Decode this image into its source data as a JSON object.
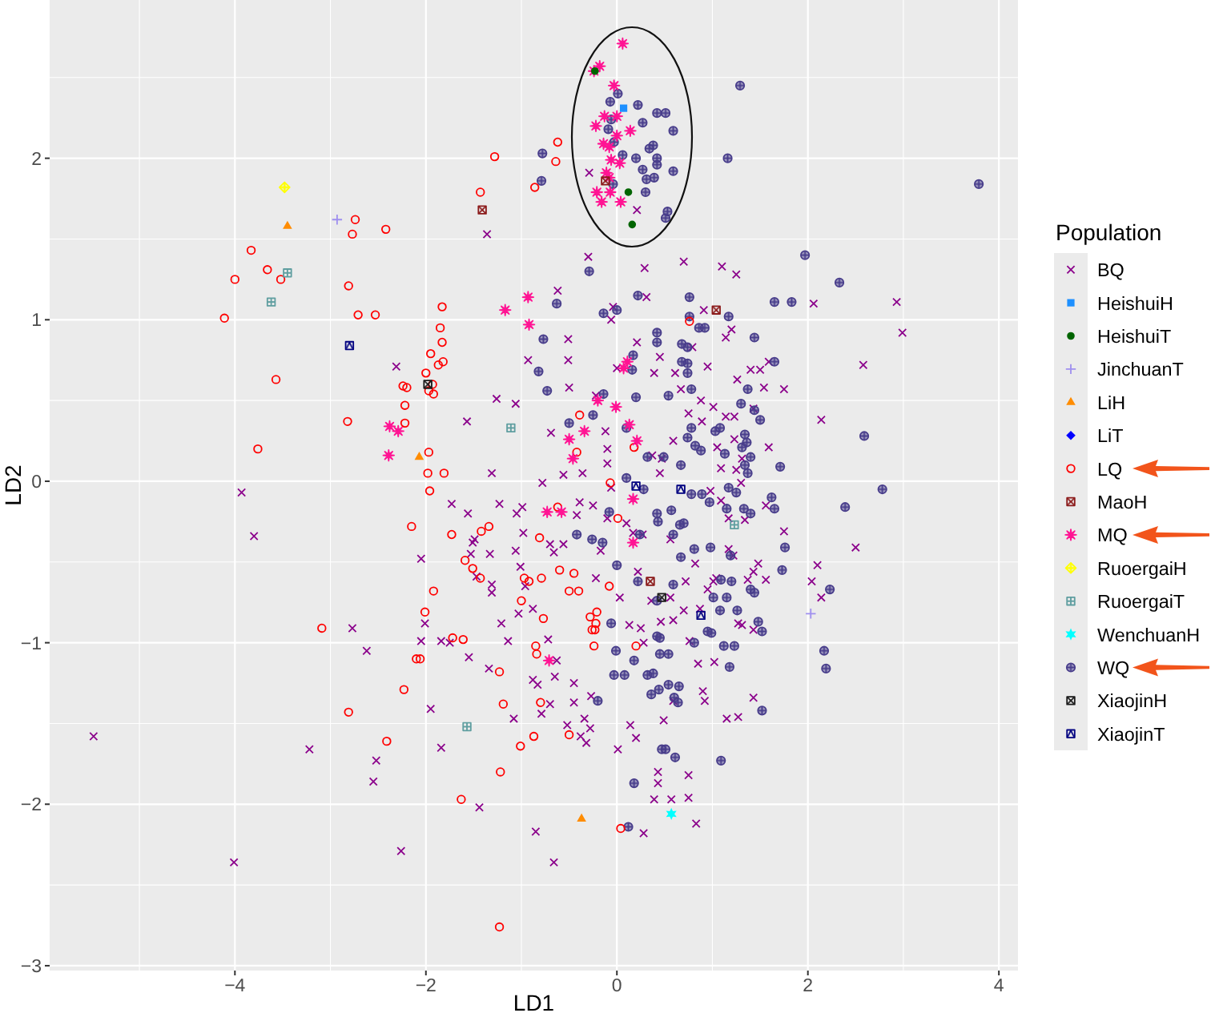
{
  "chart_data": {
    "type": "scatter",
    "xlabel": "LD1",
    "ylabel": "LD2",
    "legend_title": "Population",
    "legend": "right",
    "grid": true,
    "xlim": [
      -5.94,
      4.2
    ],
    "ylim": [
      -3.03,
      2.98
    ],
    "xticks": [
      {
        "value": -5,
        "label": null
      },
      {
        "value": -4,
        "label": "−4"
      },
      {
        "value": -3,
        "label": null
      },
      {
        "value": -2,
        "label": "−2"
      },
      {
        "value": -1,
        "label": null
      },
      0,
      {
        "value": 1,
        "label": null
      },
      2,
      {
        "value": 3,
        "label": null
      },
      4
    ],
    "yticks": [
      {
        "value": -3,
        "label": "−3"
      },
      {
        "value": -2.5,
        "label": null
      },
      {
        "value": -2,
        "label": "−2"
      },
      {
        "value": -1.5,
        "label": null
      },
      {
        "value": -1,
        "label": "−1"
      },
      {
        "value": -0.5,
        "label": null
      },
      0,
      {
        "value": 0.5,
        "label": null
      },
      1,
      {
        "value": 1.5,
        "label": null
      },
      2,
      {
        "value": 2.5,
        "label": null
      }
    ],
    "series": [
      {
        "name": "BQ",
        "color": "#8b008b",
        "marker": "cross",
        "x": [
          -1.36,
          -0.29,
          0.21,
          -0.3,
          0.29,
          0.7,
          1.1,
          1.25,
          -0.62,
          0.31,
          -0.04,
          0.91,
          2.06,
          2.93,
          2.99,
          2.58,
          2.14,
          2.5,
          2.1,
          2.04,
          2.14,
          -0.06,
          -0.51,
          -0.51,
          -0.5,
          0.21,
          0.45,
          0.79,
          1.14,
          1.2,
          0.0,
          0.39,
          0.61,
          0.95,
          1.26,
          1.4,
          1.54,
          1.75,
          1.5,
          1.59,
          0.67,
          -0.22,
          0.88,
          1.01,
          0.75,
          1.23,
          1.14,
          1.43,
          0.59,
          0.89,
          -0.12,
          -0.69,
          -0.1,
          -0.1,
          0.37,
          0.47,
          1.05,
          1.23,
          1.59,
          1.09,
          1.25,
          1.31,
          0.45,
          -0.56,
          -0.36,
          -0.78,
          -0.06,
          0.98,
          1.3,
          1.09,
          1.56,
          -0.39,
          -0.25,
          -0.42,
          -0.1,
          0.1,
          0.17,
          0.27,
          1.17,
          1.34,
          1.75,
          -0.7,
          -0.56,
          -0.66,
          -0.17,
          0.56,
          1.17,
          1.22,
          0.82,
          1.48,
          1.43,
          1.37,
          1.56,
          1.04,
          -0.22,
          0.22,
          0.03,
          0.72,
          0.95,
          0.56,
          0.36,
          0.7,
          0.87,
          1.01,
          1.27,
          1.43,
          0.13,
          0.25,
          0.46,
          0.59,
          -2.31,
          -1.26,
          -1.06,
          -1.57,
          -1.31,
          -3.93,
          -3.8,
          -1.73,
          -1.56,
          -1.23,
          -0.99,
          -1.05,
          -1.49,
          -1.51,
          -0.98,
          -2.05,
          -1.53,
          -1.33,
          -1.06,
          -1.01,
          -1.47,
          -1.31,
          -1.31,
          -0.96,
          -1.03,
          -0.88,
          -1.21,
          -2.01,
          -2.77,
          -0.93,
          -2.62,
          -2.05,
          -1.84,
          -1.75,
          -1.55,
          -1.34,
          -1.14,
          -0.72,
          -0.88,
          -0.83,
          -0.65,
          -0.63,
          -0.45,
          -0.45,
          -0.7,
          -0.27,
          -0.79,
          -1.08,
          -1.95,
          -0.52,
          -0.34,
          -0.28,
          -0.38,
          -0.32,
          0.01,
          0.14,
          0.2,
          0.49,
          0.59,
          0.9,
          0.92,
          0.85,
          1.43,
          1.15,
          1.27,
          0.75,
          0.75,
          0.43,
          0.43,
          0.39,
          0.57,
          0.83,
          0.28,
          -0.85,
          -0.66,
          -1.44,
          -2.26,
          -1.84,
          -2.52,
          -2.55,
          -3.22,
          -5.48,
          -4.01,
          1.31,
          0.76,
          0.28,
          1.02
        ],
        "values": [
          1.53,
          1.91,
          1.68,
          1.39,
          1.32,
          1.36,
          1.33,
          1.28,
          1.18,
          1.14,
          1.08,
          1.06,
          1.1,
          1.11,
          0.92,
          0.72,
          0.38,
          -0.41,
          -0.52,
          -0.62,
          -0.72,
          1.0,
          0.88,
          0.75,
          0.58,
          0.86,
          0.77,
          0.83,
          0.89,
          0.94,
          0.7,
          0.67,
          0.67,
          0.71,
          0.63,
          0.69,
          0.58,
          0.57,
          0.69,
          0.74,
          0.57,
          0.53,
          0.5,
          0.46,
          0.42,
          0.4,
          0.4,
          0.45,
          0.25,
          0.37,
          0.31,
          0.3,
          0.2,
          0.11,
          0.16,
          0.14,
          0.21,
          0.26,
          0.21,
          0.08,
          0.07,
          0.14,
          0.05,
          0.04,
          0.05,
          -0.01,
          -0.04,
          -0.06,
          -0.01,
          -0.12,
          -0.15,
          -0.13,
          -0.15,
          -0.21,
          -0.23,
          -0.26,
          -0.32,
          -0.33,
          -0.23,
          -0.24,
          -0.31,
          -0.39,
          -0.39,
          -0.44,
          -0.43,
          -0.36,
          -0.42,
          -0.46,
          -0.51,
          -0.51,
          -0.56,
          -0.61,
          -0.61,
          -0.6,
          -0.6,
          -0.56,
          -0.72,
          -0.62,
          -0.67,
          -0.72,
          -0.74,
          -0.8,
          -0.79,
          -0.62,
          -0.88,
          -0.92,
          -0.89,
          -0.91,
          -0.87,
          -0.86,
          0.71,
          0.51,
          0.48,
          0.37,
          0.05,
          -0.07,
          -0.34,
          -0.14,
          -0.2,
          -0.14,
          -0.16,
          -0.2,
          -0.36,
          -0.38,
          -0.32,
          -0.48,
          -0.45,
          -0.45,
          -0.43,
          -0.53,
          -0.59,
          -0.64,
          -0.69,
          -0.65,
          -0.82,
          -0.79,
          -0.88,
          -0.88,
          -0.91,
          0.75,
          -1.05,
          -0.99,
          -0.99,
          -1.0,
          -1.09,
          -1.16,
          -0.99,
          -0.98,
          -1.23,
          -1.26,
          -1.21,
          -1.11,
          -1.25,
          -1.37,
          -1.38,
          -1.33,
          -1.44,
          -1.47,
          -1.41,
          -1.51,
          -1.47,
          -1.53,
          -1.58,
          -1.62,
          -1.66,
          -1.51,
          -1.59,
          -1.48,
          -1.36,
          -1.3,
          -1.36,
          -1.13,
          -1.34,
          -1.47,
          -1.46,
          -1.82,
          -1.96,
          -1.8,
          -1.87,
          -1.97,
          -1.97,
          -2.12,
          -2.18,
          -2.17,
          -2.36,
          -2.02,
          -2.29,
          -1.65,
          -1.73,
          -1.86,
          -1.66,
          -1.58,
          -2.36,
          -0.89,
          -0.99,
          -1.0,
          -1.12
        ]
      },
      {
        "name": "HeishuiH",
        "color": "#1e90ff",
        "marker": "square",
        "x": [
          0.07
        ],
        "values": [
          2.31
        ]
      },
      {
        "name": "HeishuiT",
        "color": "#006400",
        "marker": "circle",
        "x": [
          -0.23,
          0.12,
          0.16
        ],
        "values": [
          2.54,
          1.79,
          1.59
        ]
      },
      {
        "name": "JinchuanT",
        "color": "#9f8fef",
        "marker": "cross",
        "x": [
          -2.93,
          2.03
        ],
        "values": [
          1.62,
          -0.82
        ]
      },
      {
        "name": "LiH",
        "color": "#ff8c00",
        "marker": "triangle",
        "x": [
          -3.45,
          -2.07,
          -0.37
        ],
        "values": [
          1.58,
          0.15,
          -2.09
        ]
      },
      {
        "name": "LiT",
        "color": "#0000ff",
        "marker": "diamond",
        "x": [
          null
        ],
        "values": [
          null
        ]
      },
      {
        "name": "LQ",
        "color": "#ff0000",
        "marker": "circle",
        "x": [
          -1.28,
          -1.43,
          -0.86,
          -2.74,
          -2.77,
          -2.42,
          -3.83,
          -3.66,
          -3.52,
          -4.0,
          -2.81,
          -4.11,
          -2.71,
          -2.53,
          -1.83,
          -0.62,
          -0.64,
          -1.85,
          -1.83,
          -1.95,
          -1.82,
          -1.87,
          -2.0,
          -3.57,
          -2.24,
          -2.2,
          -1.93,
          -1.97,
          -1.92,
          -2.22,
          -2.82,
          -2.22,
          -3.76,
          -1.97,
          -1.98,
          -1.81,
          -1.96,
          -2.15,
          -1.73,
          -1.42,
          -1.34,
          -0.81,
          -1.59,
          -1.51,
          -1.43,
          -0.97,
          -0.92,
          -0.79,
          -1.0,
          -1.92,
          -2.01,
          -3.09,
          -1.72,
          -1.61,
          0.76,
          -0.39,
          0.18,
          -0.42,
          -0.07,
          0.01,
          -0.62,
          -0.6,
          -0.45,
          -0.5,
          -0.4,
          -0.08,
          -0.21,
          -0.28,
          -0.22,
          -0.26,
          -0.77,
          -0.85,
          -0.84,
          -2.1,
          -2.06,
          -1.23,
          -0.23,
          -0.24,
          0.2,
          -2.23,
          -1.19,
          -0.8,
          -2.81,
          -2.41,
          -0.87,
          -1.01,
          -0.5,
          -1.22,
          -1.63,
          0.04,
          -1.23
        ],
        "values": [
          2.01,
          1.79,
          1.82,
          1.62,
          1.53,
          1.56,
          1.43,
          1.31,
          1.25,
          1.25,
          1.21,
          1.01,
          1.03,
          1.03,
          1.08,
          2.1,
          1.98,
          0.95,
          0.86,
          0.79,
          0.74,
          0.72,
          0.67,
          0.63,
          0.59,
          0.58,
          0.6,
          0.56,
          0.54,
          0.47,
          0.37,
          0.36,
          0.2,
          0.18,
          0.05,
          0.05,
          -0.06,
          -0.28,
          -0.33,
          -0.31,
          -0.28,
          -0.35,
          -0.49,
          -0.54,
          -0.6,
          -0.6,
          -0.62,
          -0.6,
          -0.74,
          -0.68,
          -0.81,
          -0.91,
          -0.97,
          -0.98,
          0.99,
          0.41,
          0.21,
          0.18,
          -0.01,
          -0.23,
          -0.16,
          -0.55,
          -0.57,
          -0.68,
          -0.68,
          -0.65,
          -0.81,
          -0.84,
          -0.88,
          -0.92,
          -0.85,
          -1.02,
          -1.07,
          -1.1,
          -1.1,
          -1.18,
          -0.92,
          -1.02,
          -1.02,
          -1.29,
          -1.38,
          -1.37,
          -1.43,
          -1.61,
          -1.58,
          -1.64,
          -1.57,
          -1.8,
          -1.97,
          -2.15,
          -2.76
        ]
      },
      {
        "name": "MaoH",
        "color": "#8b1a1a",
        "marker": "square",
        "x": [
          -1.41,
          1.04,
          0.35,
          -0.12
        ],
        "values": [
          1.68,
          1.06,
          -0.62,
          1.86
        ]
      },
      {
        "name": "MQ",
        "color": "#ff1493",
        "marker": "star",
        "x": [
          -1.17,
          -0.93,
          0.06,
          -0.18,
          -0.24,
          -0.03,
          0.0,
          -0.13,
          -0.22,
          0.14,
          0.0,
          -0.14,
          -0.08,
          -0.06,
          0.03,
          -0.11,
          -0.08,
          -0.21,
          -0.07,
          -0.16,
          0.04,
          -0.92,
          -2.38,
          -2.29,
          -2.39,
          0.11,
          0.07,
          -0.2,
          -0.01,
          0.13,
          -0.34,
          -0.5,
          0.21,
          -0.46,
          -0.73,
          -0.58,
          0.17,
          0.17,
          -0.71
        ],
        "values": [
          1.06,
          1.14,
          2.71,
          2.57,
          2.54,
          2.45,
          2.26,
          2.26,
          2.2,
          2.17,
          2.14,
          2.09,
          2.07,
          1.99,
          1.97,
          1.91,
          1.88,
          1.79,
          1.79,
          1.73,
          1.73,
          0.97,
          0.34,
          0.31,
          0.16,
          0.74,
          0.7,
          0.5,
          0.46,
          0.35,
          0.31,
          0.26,
          0.25,
          0.14,
          -0.19,
          -0.19,
          -0.11,
          -0.38,
          -1.11
        ]
      },
      {
        "name": "RuoergaiH",
        "color": "#ffff00",
        "marker": "diamond",
        "x": [
          -3.48
        ],
        "values": [
          1.82
        ]
      },
      {
        "name": "RuoergaiT",
        "color": "#5f9ea0",
        "marker": "square",
        "x": [
          -3.45,
          -3.62,
          -1.11,
          1.23,
          -1.57
        ],
        "values": [
          1.29,
          1.11,
          0.33,
          -0.27,
          -1.52
        ]
      },
      {
        "name": "WenchuanH",
        "color": "#00ffff",
        "marker": "star",
        "x": [
          0.57
        ],
        "values": [
          -2.06
        ]
      },
      {
        "name": "WQ",
        "color": "#483d8b",
        "marker": "circle",
        "x": [
          -0.78,
          -0.79,
          0.01,
          -0.07,
          0.22,
          0.42,
          0.51,
          0.27,
          -0.06,
          -0.09,
          0.59,
          -0.03,
          0.38,
          0.34,
          0.06,
          0.2,
          0.42,
          0.42,
          0.27,
          0.59,
          0.31,
          0.39,
          -0.04,
          0.3,
          0.53,
          0.51,
          1.29,
          1.16,
          3.79,
          1.97,
          2.33,
          -0.29,
          -0.63,
          -0.14,
          0.0,
          0.22,
          0.76,
          0.76,
          1.17,
          1.65,
          1.83,
          -0.77,
          0.42,
          0.42,
          0.86,
          0.92,
          1.44,
          0.68,
          0.74,
          0.17,
          0.16,
          0.68,
          0.74,
          0.74,
          1.65,
          -0.82,
          -0.73,
          -0.14,
          0.2,
          0.54,
          0.78,
          1.37,
          1.3,
          1.44,
          1.5,
          0.78,
          0.74,
          1.08,
          1.03,
          1.34,
          1.36,
          0.82,
          0.88,
          1.13,
          1.31,
          1.4,
          1.34,
          1.37,
          1.71,
          2.59,
          2.78,
          2.39,
          1.76,
          1.73,
          2.23,
          -0.5,
          -0.25,
          0.1,
          0.49,
          0.32,
          0.67,
          0.1,
          0.28,
          0.78,
          0.89,
          0.97,
          1.17,
          1.25,
          1.15,
          1.33,
          1.4,
          1.62,
          1.65,
          0.42,
          0.57,
          0.66,
          0.7,
          0.43,
          -0.08,
          -0.42,
          -0.26,
          -0.15,
          0.24,
          0.59,
          0.67,
          0.81,
          0.98,
          1.19,
          0.0,
          0.22,
          0.42,
          0.59,
          1.09,
          1.2,
          1.15,
          1.01,
          1.4,
          1.44,
          1.26,
          1.08,
          1.48,
          0.95,
          0.42,
          -0.06,
          -0.2,
          -0.03,
          0.08,
          -0.01,
          0.18,
          0.32,
          0.38,
          0.36,
          0.44,
          0.54,
          0.65,
          0.45,
          0.54,
          0.45,
          0.6,
          0.64,
          0.99,
          1.12,
          1.23,
          1.18,
          0.81,
          1.52,
          1.52,
          2.17,
          2.19,
          0.47,
          0.51,
          0.61,
          1.09,
          0.18,
          0.12
        ],
        "values": [
          2.03,
          1.86,
          2.4,
          2.35,
          2.33,
          2.28,
          2.28,
          2.22,
          2.24,
          2.18,
          2.17,
          2.1,
          2.08,
          2.06,
          2.02,
          2.0,
          2.0,
          1.96,
          1.93,
          1.92,
          1.87,
          1.88,
          1.84,
          1.79,
          1.67,
          1.63,
          2.45,
          2.0,
          1.84,
          1.4,
          1.23,
          1.3,
          1.1,
          1.04,
          1.06,
          1.15,
          1.14,
          1.02,
          1.02,
          1.11,
          1.11,
          0.88,
          0.92,
          0.86,
          0.95,
          0.95,
          0.89,
          0.85,
          0.83,
          0.78,
          0.69,
          0.74,
          0.73,
          0.67,
          0.74,
          0.68,
          0.56,
          0.54,
          0.52,
          0.53,
          0.57,
          0.57,
          0.48,
          0.44,
          0.38,
          0.33,
          0.27,
          0.33,
          0.31,
          0.29,
          0.24,
          0.22,
          0.19,
          0.17,
          0.21,
          0.15,
          0.1,
          0.05,
          0.09,
          0.28,
          -0.05,
          -0.16,
          -0.41,
          -0.55,
          -0.67,
          0.36,
          0.41,
          0.33,
          0.15,
          0.15,
          0.1,
          0.02,
          -0.05,
          -0.08,
          -0.08,
          -0.13,
          -0.04,
          -0.07,
          -0.17,
          -0.17,
          -0.2,
          -0.1,
          -0.17,
          -0.2,
          -0.18,
          -0.27,
          -0.26,
          -0.25,
          -0.19,
          -0.33,
          -0.36,
          -0.38,
          -0.33,
          -0.33,
          -0.47,
          -0.42,
          -0.41,
          -0.46,
          -0.52,
          -0.62,
          -0.74,
          -0.64,
          -0.61,
          -0.62,
          -0.72,
          -0.72,
          -0.67,
          -0.69,
          -0.8,
          -0.8,
          -0.87,
          -0.93,
          -0.96,
          -0.88,
          -1.36,
          -1.2,
          -1.2,
          -1.05,
          -1.11,
          -1.2,
          -1.19,
          -1.32,
          -1.29,
          -1.26,
          -1.27,
          -1.07,
          -1.07,
          -0.97,
          -1.34,
          -1.37,
          -0.94,
          -1.02,
          -1.02,
          -1.15,
          -1.0,
          -0.93,
          -1.42,
          -1.05,
          -1.16,
          -1.66,
          -1.66,
          -1.71,
          -1.73,
          -1.87,
          -2.14
        ]
      },
      {
        "name": "XiaojinH",
        "color": "#1a1a1a",
        "marker": "square",
        "x": [
          -1.98,
          0.47
        ],
        "values": [
          0.6,
          -0.72
        ]
      },
      {
        "name": "XiaojinT",
        "color": "#000080",
        "marker": "square",
        "x": [
          -2.8,
          0.2,
          0.67,
          0.88
        ],
        "values": [
          0.84,
          -0.03,
          -0.05,
          -0.83
        ]
      }
    ]
  }
}
